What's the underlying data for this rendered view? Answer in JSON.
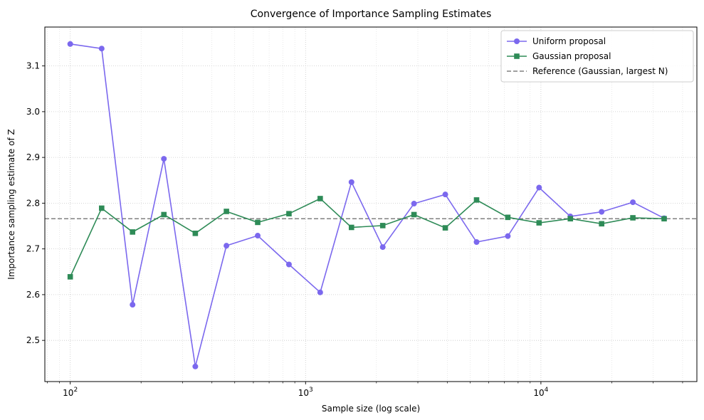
{
  "chart_data": {
    "type": "line",
    "title": "Convergence of Importance Sampling Estimates",
    "xlabel": "Sample size (log scale)",
    "ylabel": "Importance sampling estimate of Z",
    "xscale": "log",
    "xlim": [
      78,
      46000
    ],
    "ylim": [
      2.41,
      3.185
    ],
    "xticks": [
      {
        "value": 100,
        "base": "10",
        "exp": "2"
      },
      {
        "value": 1000,
        "base": "10",
        "exp": "3"
      },
      {
        "value": 10000,
        "base": "10",
        "exp": "4"
      }
    ],
    "yticks": [
      "2.5",
      "2.6",
      "2.7",
      "2.8",
      "2.9",
      "3.0",
      "3.1"
    ],
    "grid": true,
    "legend_position": "top-right",
    "x": [
      100,
      136,
      184,
      250,
      340,
      461,
      626,
      850,
      1154,
      1567,
      2128,
      2889,
      3924,
      5328,
      7234,
      9823,
      13338,
      18111,
      24592,
      33392
    ],
    "series": [
      {
        "name": "Uniform proposal",
        "color": "#7b68ee",
        "marker": "circle",
        "values": [
          3.148,
          3.138,
          2.578,
          2.897,
          2.443,
          2.707,
          2.729,
          2.666,
          2.605,
          2.846,
          2.704,
          2.799,
          2.819,
          2.715,
          2.728,
          2.834,
          2.771,
          2.781,
          2.802,
          2.767
        ]
      },
      {
        "name": "Gaussian proposal",
        "color": "#2e8b57",
        "marker": "square",
        "values": [
          2.639,
          2.789,
          2.737,
          2.775,
          2.734,
          2.782,
          2.758,
          2.777,
          2.81,
          2.747,
          2.751,
          2.775,
          2.746,
          2.807,
          2.769,
          2.757,
          2.766,
          2.755,
          2.768,
          2.766
        ]
      }
    ],
    "reference": {
      "name": "Reference (Gaussian, largest N)",
      "value": 2.766,
      "color": "#808080",
      "style": "dashed"
    }
  }
}
